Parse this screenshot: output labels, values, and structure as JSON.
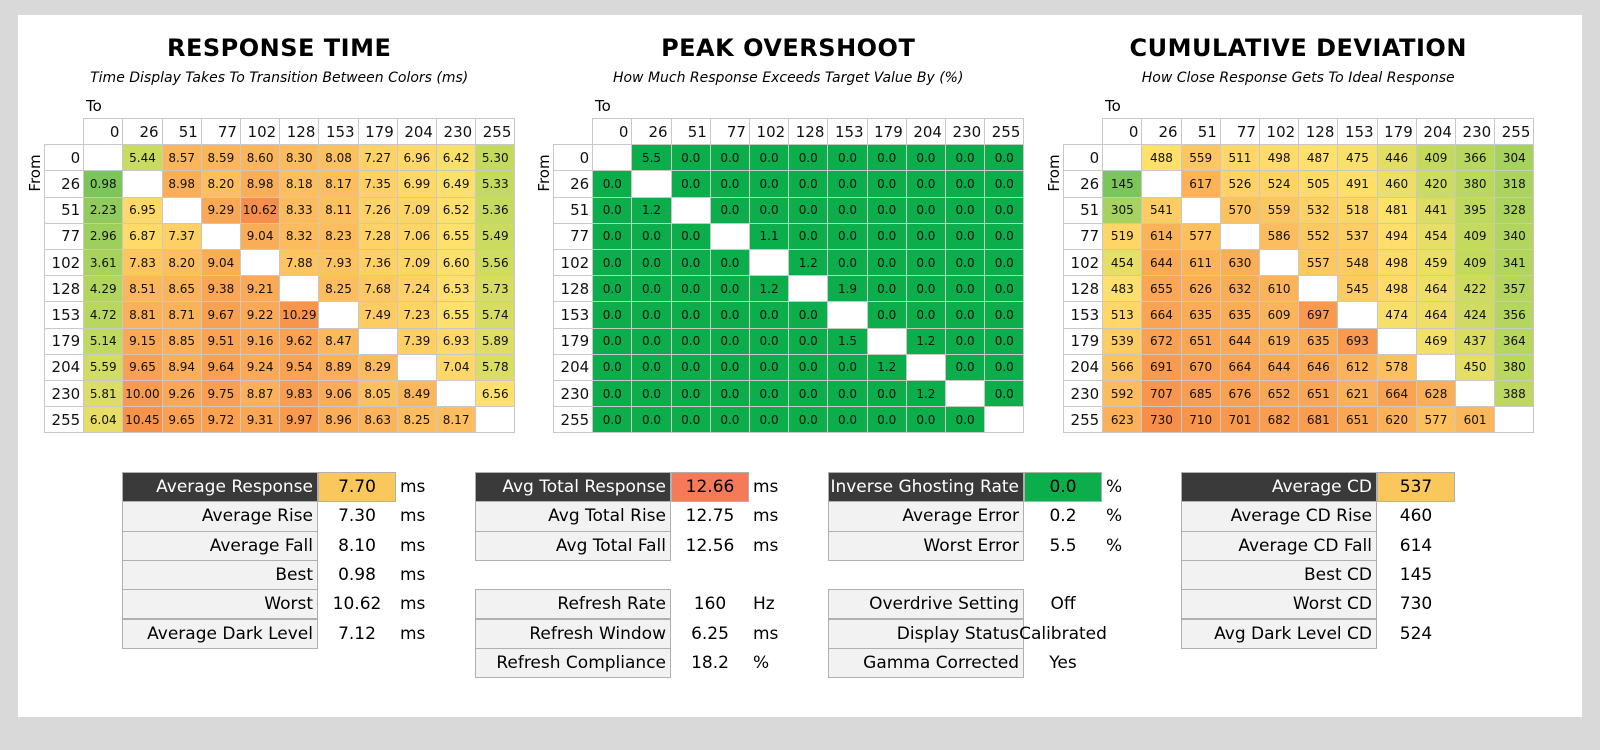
{
  "sections": [
    {
      "title": "RESPONSE TIME",
      "subtitle": "Time Display Takes To Transition Between Colors (ms)",
      "to_label": "To",
      "from_label": "From",
      "columns": [
        "0",
        "26",
        "51",
        "77",
        "102",
        "128",
        "153",
        "179",
        "204",
        "230",
        "255"
      ],
      "rows": [
        {
          "label": "0",
          "cells": [
            null,
            "5.44",
            "8.57",
            "8.59",
            "8.60",
            "8.30",
            "8.08",
            "7.27",
            "6.96",
            "6.42",
            "5.30"
          ]
        },
        {
          "label": "26",
          "cells": [
            "0.98",
            null,
            "8.98",
            "8.20",
            "8.98",
            "8.18",
            "8.17",
            "7.35",
            "6.99",
            "6.49",
            "5.33"
          ]
        },
        {
          "label": "51",
          "cells": [
            "2.23",
            "6.95",
            null,
            "9.29",
            "10.62",
            "8.33",
            "8.11",
            "7.26",
            "7.09",
            "6.52",
            "5.36"
          ]
        },
        {
          "label": "77",
          "cells": [
            "2.96",
            "6.87",
            "7.37",
            null,
            "9.04",
            "8.32",
            "8.23",
            "7.28",
            "7.06",
            "6.55",
            "5.49"
          ]
        },
        {
          "label": "102",
          "cells": [
            "3.61",
            "7.83",
            "8.20",
            "9.04",
            null,
            "7.88",
            "7.93",
            "7.36",
            "7.09",
            "6.60",
            "5.56"
          ]
        },
        {
          "label": "128",
          "cells": [
            "4.29",
            "8.51",
            "8.65",
            "9.38",
            "9.21",
            null,
            "8.25",
            "7.68",
            "7.24",
            "6.53",
            "5.73"
          ]
        },
        {
          "label": "153",
          "cells": [
            "4.72",
            "8.81",
            "8.71",
            "9.67",
            "9.22",
            "10.29",
            null,
            "7.49",
            "7.23",
            "6.55",
            "5.74"
          ]
        },
        {
          "label": "179",
          "cells": [
            "5.14",
            "9.15",
            "8.85",
            "9.51",
            "9.16",
            "9.62",
            "8.47",
            null,
            "7.39",
            "6.93",
            "5.89"
          ]
        },
        {
          "label": "204",
          "cells": [
            "5.59",
            "9.65",
            "8.94",
            "9.64",
            "9.24",
            "9.54",
            "8.89",
            "8.29",
            null,
            "7.04",
            "5.78"
          ]
        },
        {
          "label": "230",
          "cells": [
            "5.81",
            "10.00",
            "9.26",
            "9.75",
            "8.87",
            "9.83",
            "9.06",
            "8.05",
            "8.49",
            null,
            "6.56"
          ]
        },
        {
          "label": "255",
          "cells": [
            "6.04",
            "10.45",
            "9.65",
            "9.72",
            "9.31",
            "9.97",
            "8.96",
            "8.63",
            "8.25",
            "8.17",
            null
          ]
        }
      ]
    },
    {
      "title": "PEAK OVERSHOOT",
      "subtitle": "How Much Response Exceeds Target Value By (%)",
      "to_label": "To",
      "from_label": "From",
      "columns": [
        "0",
        "26",
        "51",
        "77",
        "102",
        "128",
        "153",
        "179",
        "204",
        "230",
        "255"
      ],
      "rows": [
        {
          "label": "0",
          "cells": [
            null,
            "5.5",
            "0.0",
            "0.0",
            "0.0",
            "0.0",
            "0.0",
            "0.0",
            "0.0",
            "0.0",
            "0.0"
          ]
        },
        {
          "label": "26",
          "cells": [
            "0.0",
            null,
            "0.0",
            "0.0",
            "0.0",
            "0.0",
            "0.0",
            "0.0",
            "0.0",
            "0.0",
            "0.0"
          ]
        },
        {
          "label": "51",
          "cells": [
            "0.0",
            "1.2",
            null,
            "0.0",
            "0.0",
            "0.0",
            "0.0",
            "0.0",
            "0.0",
            "0.0",
            "0.0"
          ]
        },
        {
          "label": "77",
          "cells": [
            "0.0",
            "0.0",
            "0.0",
            null,
            "1.1",
            "0.0",
            "0.0",
            "0.0",
            "0.0",
            "0.0",
            "0.0"
          ]
        },
        {
          "label": "102",
          "cells": [
            "0.0",
            "0.0",
            "0.0",
            "0.0",
            null,
            "1.2",
            "0.0",
            "0.0",
            "0.0",
            "0.0",
            "0.0"
          ]
        },
        {
          "label": "128",
          "cells": [
            "0.0",
            "0.0",
            "0.0",
            "0.0",
            "1.2",
            null,
            "1.9",
            "0.0",
            "0.0",
            "0.0",
            "0.0"
          ]
        },
        {
          "label": "153",
          "cells": [
            "0.0",
            "0.0",
            "0.0",
            "0.0",
            "0.0",
            "0.0",
            null,
            "0.0",
            "0.0",
            "0.0",
            "0.0"
          ]
        },
        {
          "label": "179",
          "cells": [
            "0.0",
            "0.0",
            "0.0",
            "0.0",
            "0.0",
            "0.0",
            "1.5",
            null,
            "1.2",
            "0.0",
            "0.0"
          ]
        },
        {
          "label": "204",
          "cells": [
            "0.0",
            "0.0",
            "0.0",
            "0.0",
            "0.0",
            "0.0",
            "0.0",
            "1.2",
            null,
            "0.0",
            "0.0"
          ]
        },
        {
          "label": "230",
          "cells": [
            "0.0",
            "0.0",
            "0.0",
            "0.0",
            "0.0",
            "0.0",
            "0.0",
            "0.0",
            "1.2",
            null,
            "0.0"
          ]
        },
        {
          "label": "255",
          "cells": [
            "0.0",
            "0.0",
            "0.0",
            "0.0",
            "0.0",
            "0.0",
            "0.0",
            "0.0",
            "0.0",
            "0.0",
            null
          ]
        }
      ]
    },
    {
      "title": "CUMULATIVE DEVIATION",
      "subtitle": "How Close Response Gets To Ideal Response",
      "to_label": "To",
      "from_label": "From",
      "columns": [
        "0",
        "26",
        "51",
        "77",
        "102",
        "128",
        "153",
        "179",
        "204",
        "230",
        "255"
      ],
      "rows": [
        {
          "label": "0",
          "cells": [
            null,
            "488",
            "559",
            "511",
            "498",
            "487",
            "475",
            "446",
            "409",
            "366",
            "304"
          ]
        },
        {
          "label": "26",
          "cells": [
            "145",
            null,
            "617",
            "526",
            "524",
            "505",
            "491",
            "460",
            "420",
            "380",
            "318"
          ]
        },
        {
          "label": "51",
          "cells": [
            "305",
            "541",
            null,
            "570",
            "559",
            "532",
            "518",
            "481",
            "441",
            "395",
            "328"
          ]
        },
        {
          "label": "77",
          "cells": [
            "519",
            "614",
            "577",
            null,
            "586",
            "552",
            "537",
            "494",
            "454",
            "409",
            "340"
          ]
        },
        {
          "label": "102",
          "cells": [
            "454",
            "644",
            "611",
            "630",
            null,
            "557",
            "548",
            "498",
            "459",
            "409",
            "341"
          ]
        },
        {
          "label": "128",
          "cells": [
            "483",
            "655",
            "626",
            "632",
            "610",
            null,
            "545",
            "498",
            "464",
            "422",
            "357"
          ]
        },
        {
          "label": "153",
          "cells": [
            "513",
            "664",
            "635",
            "635",
            "609",
            "697",
            null,
            "474",
            "464",
            "424",
            "356"
          ]
        },
        {
          "label": "179",
          "cells": [
            "539",
            "672",
            "651",
            "644",
            "619",
            "635",
            "693",
            null,
            "469",
            "437",
            "364"
          ]
        },
        {
          "label": "204",
          "cells": [
            "566",
            "691",
            "670",
            "664",
            "644",
            "646",
            "612",
            "578",
            null,
            "450",
            "380"
          ]
        },
        {
          "label": "230",
          "cells": [
            "592",
            "707",
            "685",
            "676",
            "652",
            "651",
            "621",
            "664",
            "628",
            null,
            "388"
          ]
        },
        {
          "label": "255",
          "cells": [
            "623",
            "730",
            "710",
            "701",
            "682",
            "681",
            "651",
            "620",
            "577",
            "601",
            null
          ]
        }
      ]
    }
  ],
  "summaries": [
    {
      "blocks": [
        {
          "rows": [
            {
              "label": "Average Response",
              "value": "7.70",
              "unit": "ms"
            },
            {
              "label": "Average Rise",
              "value": "7.30",
              "unit": "ms"
            },
            {
              "label": "Average Fall",
              "value": "8.10",
              "unit": "ms"
            },
            {
              "label": "Best",
              "value": "0.98",
              "unit": "ms"
            },
            {
              "label": "Worst",
              "value": "10.62",
              "unit": "ms"
            },
            {
              "label": "Average Dark Level",
              "value": "7.12",
              "unit": "ms"
            }
          ]
        }
      ]
    },
    {
      "blocks": [
        {
          "rows": [
            {
              "label": "Avg Total Response",
              "value": "12.66",
              "unit": "ms"
            },
            {
              "label": "Avg Total Rise",
              "value": "12.75",
              "unit": "ms"
            },
            {
              "label": "Avg Total Fall",
              "value": "12.56",
              "unit": "ms"
            }
          ]
        },
        {
          "rows": [
            {
              "label": "Refresh Rate",
              "value": "160",
              "unit": "Hz"
            },
            {
              "label": "Refresh Window",
              "value": "6.25",
              "unit": "ms"
            },
            {
              "label": "Refresh Compliance",
              "value": "18.2",
              "unit": "%"
            }
          ]
        }
      ]
    },
    {
      "blocks": [
        {
          "rows": [
            {
              "label": "Inverse Ghosting Rate",
              "value": "0.0",
              "unit": "%"
            },
            {
              "label": "Average Error",
              "value": "0.2",
              "unit": "%"
            },
            {
              "label": "Worst Error",
              "value": "5.5",
              "unit": "%"
            }
          ]
        },
        {
          "rows": [
            {
              "label": "Overdrive Setting",
              "value": "Off"
            },
            {
              "label": "Display Status",
              "value": "Calibrated"
            },
            {
              "label": "Gamma Corrected",
              "value": "Yes"
            }
          ]
        }
      ]
    },
    {
      "blocks": [
        {
          "rows": [
            {
              "label": "Average CD",
              "value": "537"
            },
            {
              "label": "Average CD Rise",
              "value": "460"
            },
            {
              "label": "Average CD Fall",
              "value": "614"
            },
            {
              "label": "Best CD",
              "value": "145"
            },
            {
              "label": "Worst CD",
              "value": "730"
            },
            {
              "label": "Avg Dark Level CD",
              "value": "524"
            }
          ]
        }
      ]
    }
  ]
}
